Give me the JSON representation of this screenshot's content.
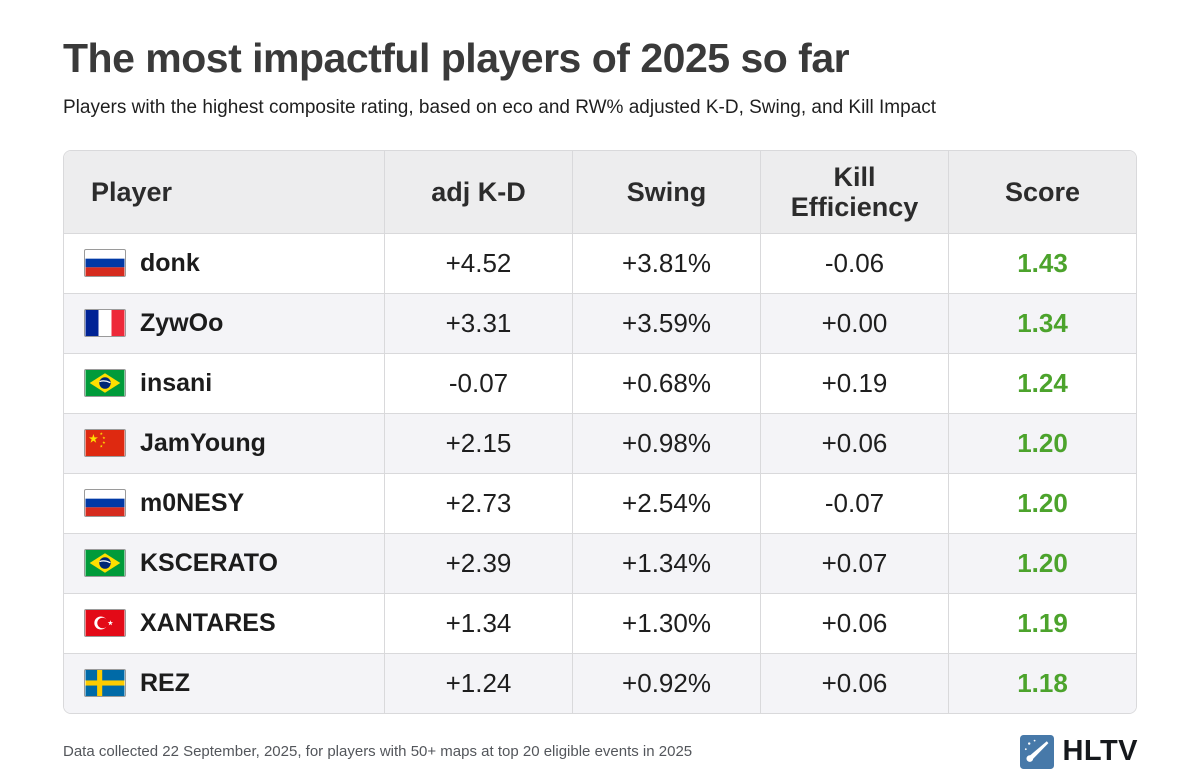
{
  "chart_data": {
    "type": "table",
    "title": "The most impactful players of 2025 so far",
    "subtitle": "Players with the highest composite rating, based on eco and RW% adjusted K-D, Swing, and Kill Impact",
    "footnote": "Data collected 22 September, 2025, for players with 50+ maps at top 20 eligible events in 2025",
    "columns": [
      "Player",
      "adj K-D",
      "Swing",
      "Kill Efficiency",
      "Score"
    ],
    "rows": [
      {
        "flag_icon": "russia-flag-icon",
        "country": "ru",
        "player": "donk",
        "adj_kd": "+4.52",
        "swing": "+3.81%",
        "kill_efficiency": "-0.06",
        "score": "1.43"
      },
      {
        "flag_icon": "france-flag-icon",
        "country": "fr",
        "player": "ZywOo",
        "adj_kd": "+3.31",
        "swing": "+3.59%",
        "kill_efficiency": "+0.00",
        "score": "1.34"
      },
      {
        "flag_icon": "brazil-flag-icon",
        "country": "br",
        "player": "insani",
        "adj_kd": "-0.07",
        "swing": "+0.68%",
        "kill_efficiency": "+0.19",
        "score": "1.24"
      },
      {
        "flag_icon": "china-flag-icon",
        "country": "cn",
        "player": "JamYoung",
        "adj_kd": "+2.15",
        "swing": "+0.98%",
        "kill_efficiency": "+0.06",
        "score": "1.20"
      },
      {
        "flag_icon": "russia-flag-icon",
        "country": "ru",
        "player": "m0NESY",
        "adj_kd": "+2.73",
        "swing": "+2.54%",
        "kill_efficiency": "-0.07",
        "score": "1.20"
      },
      {
        "flag_icon": "brazil-flag-icon",
        "country": "br",
        "player": "KSCERATO",
        "adj_kd": "+2.39",
        "swing": "+1.34%",
        "kill_efficiency": "+0.07",
        "score": "1.20"
      },
      {
        "flag_icon": "turkey-flag-icon",
        "country": "tr",
        "player": "XANTARES",
        "adj_kd": "+1.34",
        "swing": "+1.30%",
        "kill_efficiency": "+0.06",
        "score": "1.19"
      },
      {
        "flag_icon": "sweden-flag-icon",
        "country": "se",
        "player": "REZ",
        "adj_kd": "+1.24",
        "swing": "+0.92%",
        "kill_efficiency": "+0.06",
        "score": "1.18"
      }
    ],
    "layout": {
      "score_column_color": "#4ca32c",
      "header_bg": "#ededee",
      "alt_row_bg": "#f4f4f7",
      "border_color": "#d9d9db"
    }
  },
  "brand": {
    "name": "HLTV",
    "logo_icon": "hltv-comet-icon",
    "logo_color": "#4779a9"
  }
}
